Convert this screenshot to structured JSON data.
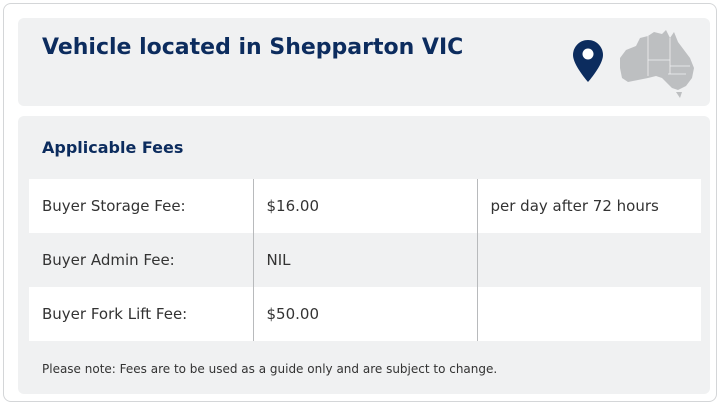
{
  "header": {
    "title": "Vehicle located in Shepparton VIC",
    "pin_icon": "map-pin-icon",
    "map_icon": "australia-map-icon",
    "accent": "#0c2c5e"
  },
  "fees": {
    "title": "Applicable Fees",
    "rows": [
      {
        "label": "Buyer Storage Fee:",
        "amount": "$16.00",
        "note": "per day after 72 hours"
      },
      {
        "label": "Buyer Admin Fee:",
        "amount": "NIL",
        "note": ""
      },
      {
        "label": "Buyer Fork Lift Fee:",
        "amount": "$50.00",
        "note": ""
      }
    ],
    "disclaimer": "Please note: Fees are to be used as a guide only and are subject to change."
  }
}
